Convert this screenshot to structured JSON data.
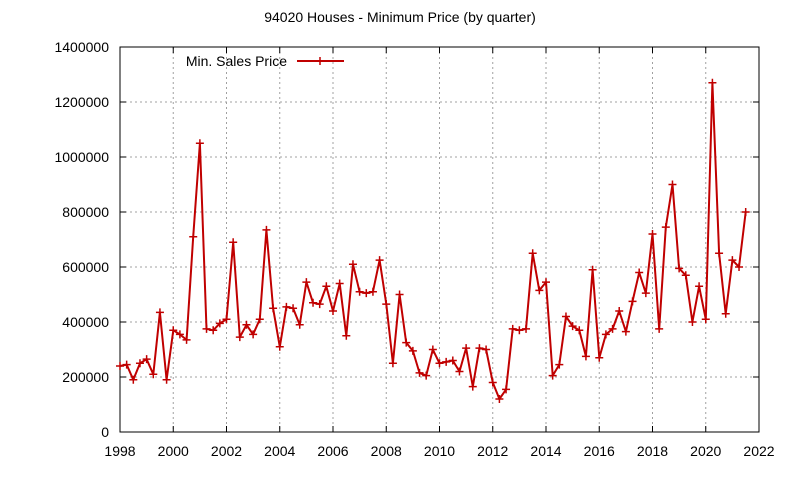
{
  "chart_data": {
    "type": "line",
    "title": "94020 Houses - Minimum Price (by quarter)",
    "xlabel": "",
    "ylabel": "",
    "xlim": [
      1998,
      2022
    ],
    "ylim": [
      0,
      1400000
    ],
    "x_ticks": [
      1998,
      2000,
      2002,
      2004,
      2006,
      2008,
      2010,
      2012,
      2014,
      2016,
      2018,
      2020,
      2022
    ],
    "y_ticks": [
      0,
      200000,
      400000,
      600000,
      800000,
      1000000,
      1200000,
      1400000
    ],
    "grid": true,
    "legend_position": "top-left",
    "series": [
      {
        "name": "Min. Sales Price",
        "color": "#c00000",
        "marker": "plus",
        "x": [
          1998.0,
          1998.25,
          1998.5,
          1998.75,
          1999.0,
          1999.25,
          1999.5,
          1999.75,
          2000.0,
          2000.25,
          2000.5,
          2000.75,
          2001.0,
          2001.25,
          2001.5,
          2001.75,
          2002.0,
          2002.25,
          2002.5,
          2002.75,
          2003.0,
          2003.25,
          2003.5,
          2003.75,
          2004.0,
          2004.25,
          2004.5,
          2004.75,
          2005.0,
          2005.25,
          2005.5,
          2005.75,
          2006.0,
          2006.25,
          2006.5,
          2006.75,
          2007.0,
          2007.25,
          2007.5,
          2007.75,
          2008.0,
          2008.25,
          2008.5,
          2008.75,
          2009.0,
          2009.25,
          2009.5,
          2009.75,
          2010.0,
          2010.25,
          2010.5,
          2010.75,
          2011.0,
          2011.25,
          2011.5,
          2011.75,
          2012.0,
          2012.25,
          2012.5,
          2012.75,
          2013.0,
          2013.25,
          2013.5,
          2013.75,
          2014.0,
          2014.25,
          2014.5,
          2014.75,
          2015.0,
          2015.25,
          2015.5,
          2015.75,
          2016.0,
          2016.25,
          2016.5,
          2016.75,
          2017.0,
          2017.25,
          2017.5,
          2017.75,
          2018.0,
          2018.25,
          2018.5,
          2018.75,
          2019.0,
          2019.25,
          2019.5,
          2019.75,
          2020.0,
          2020.25,
          2020.5,
          2020.75,
          2021.0,
          2021.25,
          2021.5
        ],
        "values": [
          240000,
          245000,
          190000,
          250000,
          265000,
          210000,
          435000,
          190000,
          370000,
          355000,
          335000,
          710000,
          1050000,
          375000,
          370000,
          395000,
          410000,
          690000,
          345000,
          390000,
          355000,
          410000,
          735000,
          450000,
          310000,
          455000,
          450000,
          390000,
          545000,
          470000,
          465000,
          530000,
          440000,
          540000,
          350000,
          610000,
          510000,
          505000,
          510000,
          625000,
          465000,
          250000,
          500000,
          325000,
          295000,
          215000,
          205000,
          300000,
          250000,
          255000,
          260000,
          220000,
          305000,
          165000,
          305000,
          300000,
          180000,
          120000,
          155000,
          375000,
          370000,
          375000,
          650000,
          515000,
          545000,
          205000,
          245000,
          420000,
          385000,
          370000,
          275000,
          590000,
          270000,
          355000,
          375000,
          440000,
          365000,
          475000,
          580000,
          505000,
          720000,
          375000,
          745000,
          900000,
          595000,
          570000,
          400000,
          530000,
          410000,
          1270000,
          650000,
          430000,
          625000,
          600000,
          800000
        ]
      }
    ]
  }
}
